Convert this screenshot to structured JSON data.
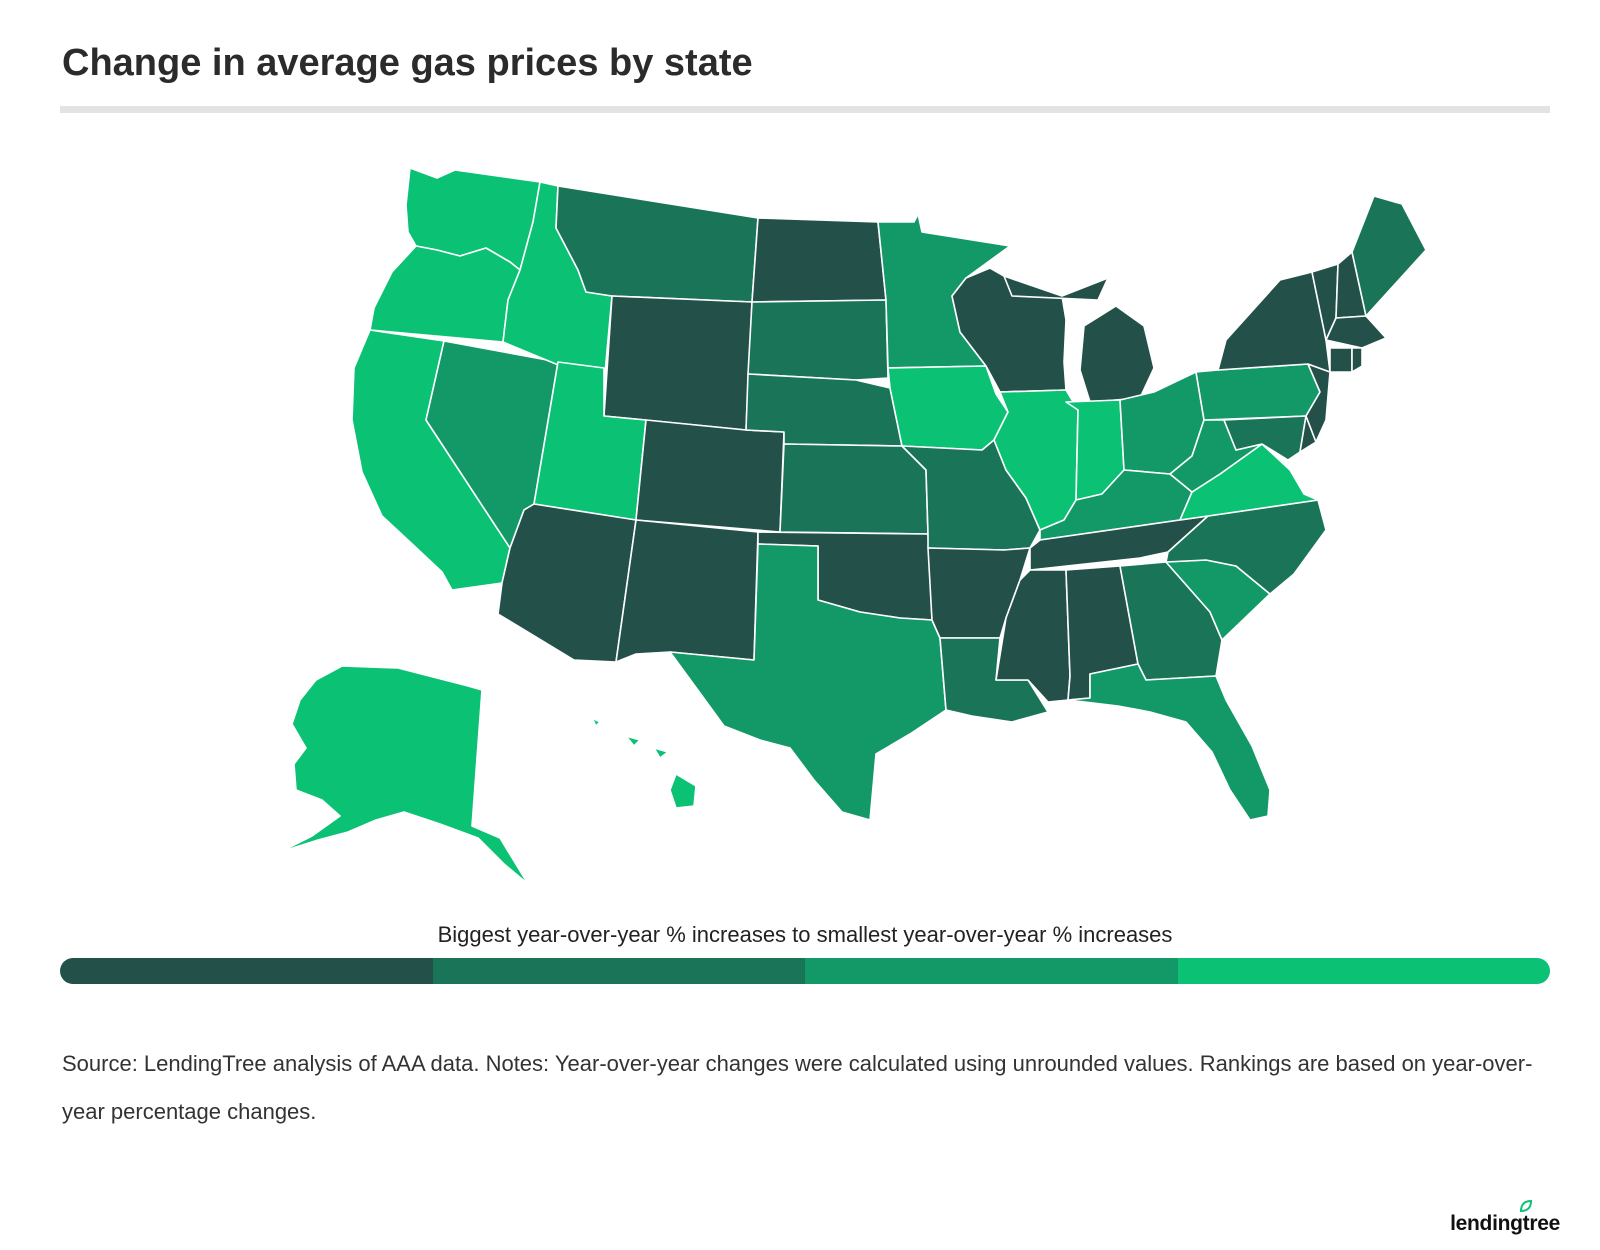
{
  "title": "Change in average gas prices by state",
  "legend": {
    "label": "Biggest year-over-year % increases to smallest year-over-year % increases",
    "tiers": [
      "#23514a",
      "#1a7558",
      "#129967",
      "#0bc174"
    ]
  },
  "source_note": "Source: LendingTree analysis of AAA data. Notes: Year-over-year changes were calculated using unrounded values. Rankings are based on year-over-year percentage changes.",
  "brand": "lendingtree",
  "state_tiers": {
    "Washington": 4,
    "Oregon": 4,
    "California": 4,
    "Idaho": 4,
    "Utah": 4,
    "Nevada": 3,
    "Montana": 2,
    "Wyoming": 1,
    "Colorado": 1,
    "Arizona": 1,
    "New Mexico": 1,
    "North Dakota": 1,
    "South Dakota": 2,
    "Nebraska": 2,
    "Kansas": 2,
    "Oklahoma": 1,
    "Texas": 3,
    "Minnesota": 3,
    "Iowa": 4,
    "Missouri": 2,
    "Arkansas": 1,
    "Louisiana": 2,
    "Wisconsin": 1,
    "Illinois": 4,
    "Michigan": 1,
    "Indiana": 4,
    "Ohio": 3,
    "Kentucky": 3,
    "Tennessee": 1,
    "Mississippi": 1,
    "Alabama": 1,
    "Georgia": 2,
    "Florida": 3,
    "South Carolina": 3,
    "North Carolina": 2,
    "Virginia": 4,
    "West Virginia": 3,
    "Pennsylvania": 3,
    "New York": 1,
    "Vermont": 1,
    "New Hampshire": 1,
    "Maine": 2,
    "Massachusetts": 1,
    "Rhode Island": 1,
    "Connecticut": 1,
    "New Jersey": 1,
    "Delaware": 1,
    "Maryland": 2,
    "Alaska": 4,
    "Hawaii": 4
  }
}
